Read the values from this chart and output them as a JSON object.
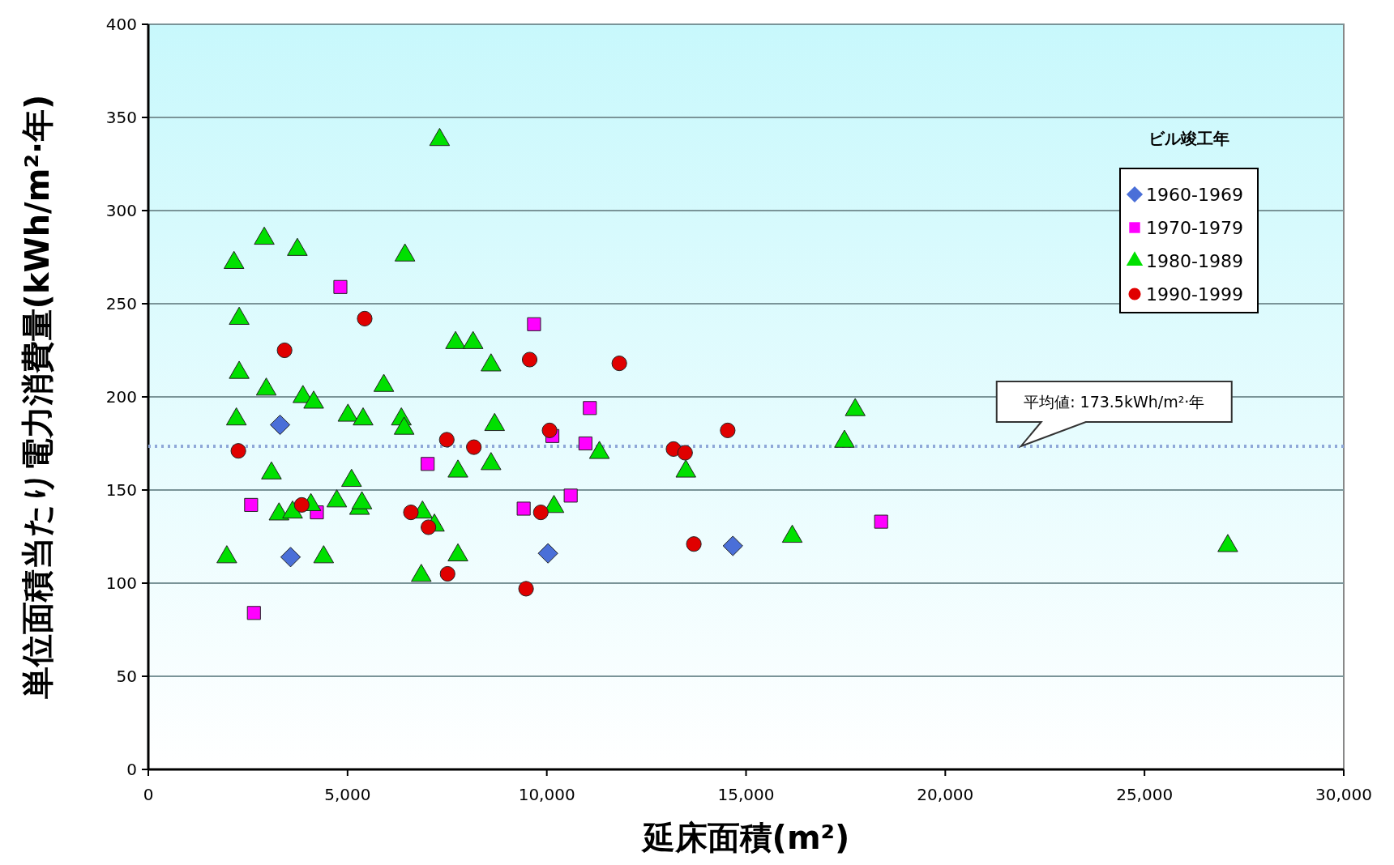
{
  "chart_data": {
    "type": "scatter",
    "xlabel": "延床面積(m²)",
    "ylabel": "単位面積当たり電力消費量(kWh/m²·年)",
    "legend_title": "ビル竣工年",
    "xlim": [
      0,
      30000
    ],
    "xticks": [
      {
        "value": 0,
        "label": "0"
      },
      {
        "value": 5000,
        "label": "5,000"
      },
      {
        "value": 10000,
        "label": "10,000"
      },
      {
        "value": 15000,
        "label": "15,000"
      },
      {
        "value": 20000,
        "label": "20,000"
      },
      {
        "value": 25000,
        "label": "25,000"
      },
      {
        "value": 30000,
        "label": "30,000"
      }
    ],
    "ylim": [
      0,
      400
    ],
    "yticks": [
      0,
      50,
      100,
      150,
      200,
      250,
      300,
      350,
      400
    ],
    "grid": "y",
    "legend": "top right",
    "ref_lines": [
      {
        "axis": "y",
        "value": 173.5,
        "label": "平均値: 173.5kWh/m²·年",
        "color": "#8fa8d8",
        "line_style": "dotted"
      }
    ],
    "series": [
      {
        "name": "1960-1969",
        "color": "#4a6fd8",
        "marker": "diamond",
        "x": [
          3306,
          3570,
          10030,
          14670
        ],
        "values": [
          185,
          114,
          116,
          120
        ]
      },
      {
        "name": "1970-1979",
        "color": "#ff00ff",
        "marker": "square",
        "x": [
          4820,
          9680,
          11080,
          10140,
          10970,
          7010,
          10600,
          9420,
          2580,
          4230,
          2650,
          18390
        ],
        "values": [
          259,
          239,
          194,
          179,
          175,
          164,
          147,
          140,
          142,
          138,
          84,
          133
        ]
      },
      {
        "name": "1980-1989",
        "color": "#00e000",
        "marker": "triangle",
        "x": [
          7310,
          2910,
          3740,
          2150,
          6440,
          2280,
          2280,
          2960,
          2210,
          3880,
          4150,
          5010,
          5390,
          5910,
          6350,
          6420,
          8690,
          7710,
          8150,
          8600,
          3090,
          5100,
          7770,
          8600,
          11320,
          13490,
          3280,
          3620,
          4080,
          4730,
          5300,
          5360,
          6880,
          7180,
          10180,
          1970,
          4400,
          7770,
          6850,
          17740,
          17470,
          16160,
          27090
        ],
        "values": [
          338,
          285,
          279,
          272,
          276,
          242,
          213,
          204,
          188,
          200,
          197,
          190,
          188,
          206,
          188,
          183,
          185,
          229,
          229,
          217,
          159,
          155,
          160,
          164,
          170,
          160,
          137,
          138,
          142,
          144,
          140,
          143,
          138,
          131,
          141,
          114,
          114,
          115,
          104,
          193,
          176,
          125,
          120
        ]
      },
      {
        "name": "1990-1999",
        "color": "#e00000",
        "marker": "circle",
        "x": [
          5430,
          3420,
          9570,
          11820,
          2260,
          7490,
          8170,
          10070,
          13180,
          13470,
          14540,
          3850,
          6590,
          7030,
          9850,
          7510,
          9480,
          13690
        ],
        "values": [
          242,
          225,
          220,
          218,
          171,
          177,
          173,
          182,
          172,
          170,
          182,
          142,
          138,
          130,
          138,
          105,
          97,
          121
        ]
      }
    ]
  }
}
